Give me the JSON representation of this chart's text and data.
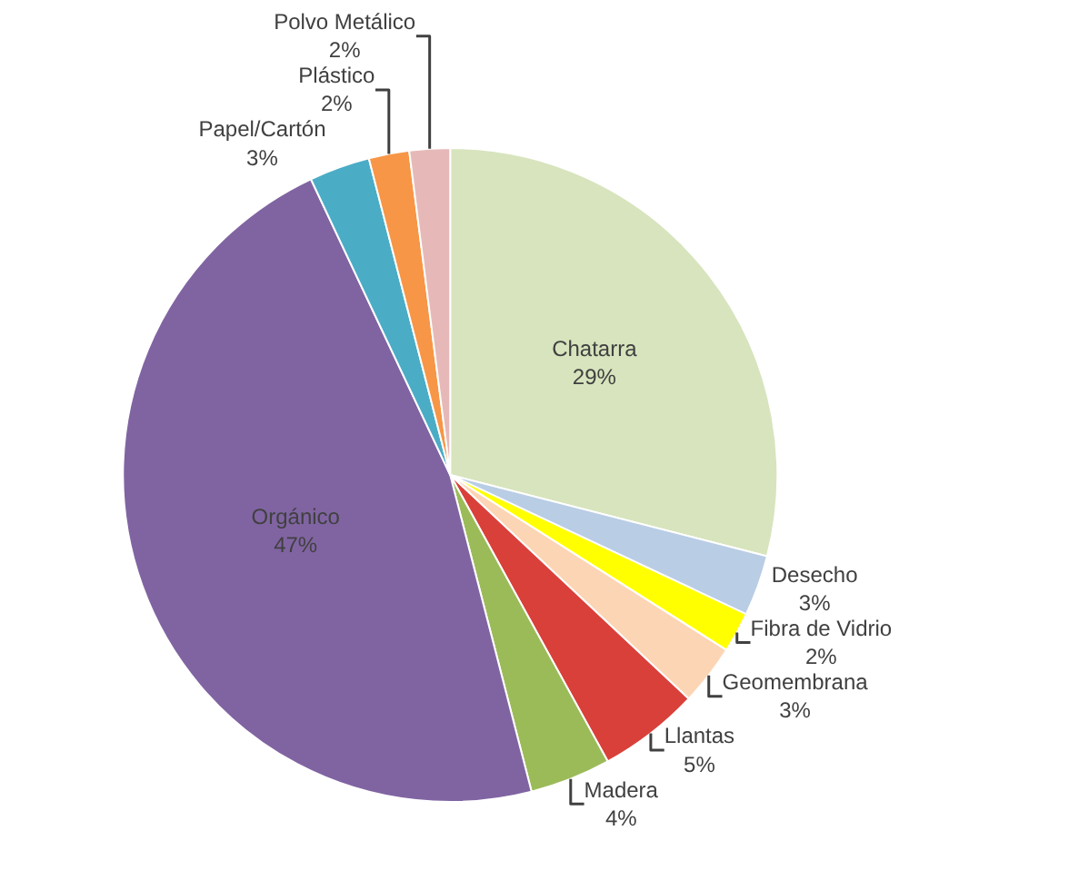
{
  "chart_data": {
    "type": "pie",
    "categories": [
      "Chatarra",
      "Desecho",
      "Fibra de Vidrio",
      "Geomembrana",
      "Llantas",
      "Madera",
      "Orgánico",
      "Papel/Cartón",
      "Plástico",
      "Polvo Metálico"
    ],
    "values": [
      29,
      3,
      2,
      3,
      5,
      4,
      47,
      3,
      2,
      2
    ],
    "value_labels": [
      "29%",
      "3%",
      "2%",
      "3%",
      "5%",
      "4%",
      "47%",
      "3%",
      "2%",
      "2%"
    ],
    "colors": [
      "#d7e4bd",
      "#b9cde5",
      "#ffff00",
      "#fcd5b5",
      "#d9403a",
      "#9bbb59",
      "#8064a2",
      "#4bacc6",
      "#f79646",
      "#e6b9b8"
    ],
    "legend": false
  }
}
